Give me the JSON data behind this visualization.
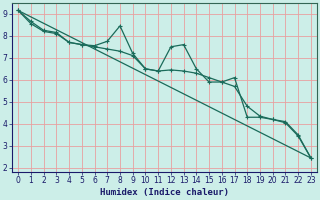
{
  "xlabel": "Humidex (Indice chaleur)",
  "background_color": "#cceee8",
  "grid_color": "#e8a0a0",
  "line_color": "#1a6b5a",
  "xlim": [
    -0.5,
    23.5
  ],
  "ylim": [
    1.8,
    9.5
  ],
  "x_ticks": [
    0,
    1,
    2,
    3,
    4,
    5,
    6,
    7,
    8,
    9,
    10,
    11,
    12,
    13,
    14,
    15,
    16,
    17,
    18,
    19,
    20,
    21,
    22,
    23
  ],
  "y_ticks": [
    2,
    3,
    4,
    5,
    6,
    7,
    8,
    9
  ],
  "line1_x": [
    0,
    1,
    2,
    3,
    4,
    5,
    6,
    7,
    8,
    9,
    10,
    11,
    12,
    13,
    14,
    15,
    16,
    17,
    18,
    19,
    20,
    21,
    22,
    23
  ],
  "line1_y": [
    9.15,
    8.65,
    8.25,
    8.15,
    7.7,
    7.6,
    7.55,
    7.75,
    8.45,
    7.2,
    6.5,
    6.4,
    7.5,
    7.6,
    6.5,
    5.9,
    5.9,
    6.1,
    4.3,
    4.3,
    4.2,
    4.1,
    3.5,
    2.45
  ],
  "line2_x": [
    0,
    1,
    2,
    3,
    4,
    5,
    6,
    7,
    8,
    9,
    10,
    11,
    12,
    13,
    14,
    15,
    16,
    17,
    18,
    19,
    20,
    21,
    22,
    23
  ],
  "line2_y": [
    9.15,
    8.55,
    8.2,
    8.1,
    7.7,
    7.6,
    7.5,
    7.4,
    7.3,
    7.1,
    6.5,
    6.4,
    6.45,
    6.4,
    6.3,
    6.1,
    5.9,
    5.7,
    4.8,
    4.35,
    4.2,
    4.05,
    3.45,
    2.45
  ],
  "line3_x": [
    0,
    23
  ],
  "line3_y": [
    9.15,
    2.45
  ]
}
